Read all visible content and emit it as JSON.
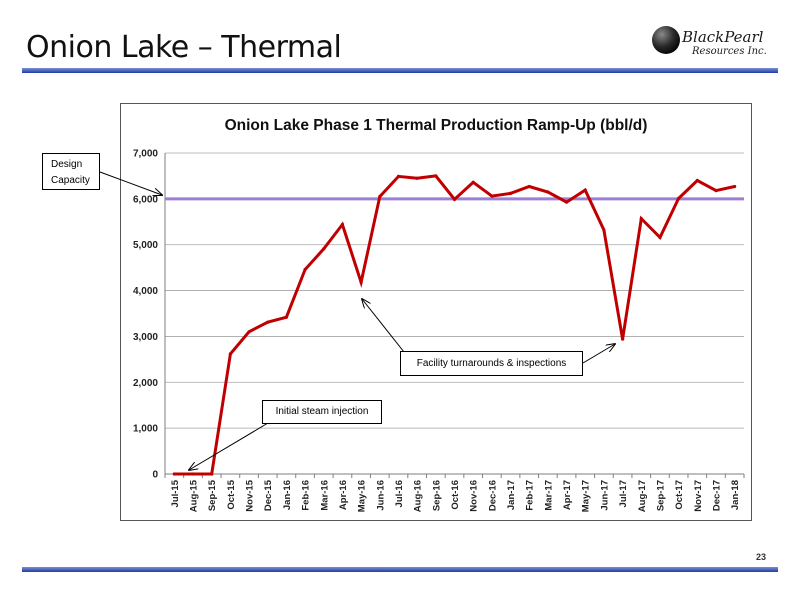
{
  "slide": {
    "title": "Onion Lake – Thermal",
    "page_number": "23",
    "logo": {
      "name": "BlackPearl",
      "subtitle": "Resources Inc."
    }
  },
  "annotations": {
    "design_capacity": "Design Capacity",
    "facility": "Facility turnarounds & inspections",
    "steam": "Initial steam injection"
  },
  "colors": {
    "series_line": "#c00000",
    "design_capacity_line": "#9b7fd4",
    "rule": "#1f3ea6"
  },
  "chart_data": {
    "type": "line",
    "title": "Onion Lake Phase 1 Thermal Production Ramp-Up (bbl/d)",
    "xlabel": "",
    "ylabel": "",
    "ylim": [
      0,
      7000
    ],
    "yticks": [
      "0",
      "1,000",
      "2,000",
      "3,000",
      "4,000",
      "5,000",
      "6,000",
      "7,000"
    ],
    "grid": true,
    "legend": "none",
    "categories": [
      "Jul-15",
      "Aug-15",
      "Sep-15",
      "Oct-15",
      "Nov-15",
      "Dec-15",
      "Jan-16",
      "Feb-16",
      "Mar-16",
      "Apr-16",
      "May-16",
      "Jun-16",
      "Jul-16",
      "Aug-16",
      "Sep-16",
      "Oct-16",
      "Nov-16",
      "Dec-16",
      "Jan-17",
      "Feb-17",
      "Mar-17",
      "Apr-17",
      "May-17",
      "Jun-17",
      "Jul-17",
      "Aug-17",
      "Sep-17",
      "Oct-17",
      "Nov-17",
      "Dec-17",
      "Jan-18"
    ],
    "series": [
      {
        "values": [
          0,
          0,
          0,
          2620,
          3100,
          3310,
          3420,
          4460,
          4910,
          5440,
          4180,
          6050,
          6490,
          6450,
          6500,
          5990,
          6360,
          6060,
          6120,
          6270,
          6150,
          5930,
          6190,
          5320,
          2940,
          5570,
          5160,
          6010,
          6400,
          6180,
          6270
        ]
      }
    ],
    "reference_line": {
      "value": 6000,
      "label": "Design Capacity"
    }
  }
}
